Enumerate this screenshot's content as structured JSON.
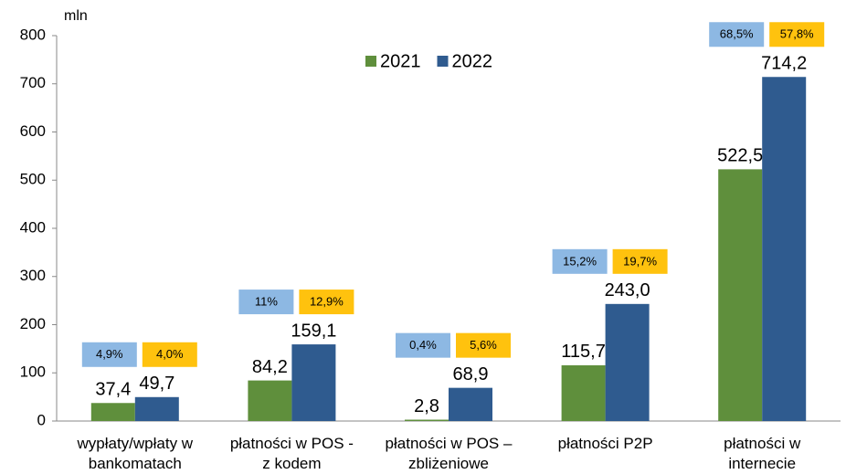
{
  "chart_data": {
    "type": "bar",
    "y_axis_label": "mln",
    "categories": [
      "wypłaty/wpłaty w\nbankomatach",
      "płatności w POS -\nz kodem",
      "płatności  w POS –\nzbliżeniowe",
      "płatności P2P",
      "płatności w\ninternecie"
    ],
    "series": [
      {
        "name": "2021",
        "color": "#5f8f3c",
        "values": [
          37.4,
          84.2,
          2.8,
          115.7,
          522.5
        ],
        "value_labels": [
          "37,4",
          "84,2",
          "2,8",
          "115,7",
          "522,5"
        ]
      },
      {
        "name": "2022",
        "color": "#2f5b8f",
        "values": [
          49.7,
          159.1,
          68.9,
          243.0,
          714.2
        ],
        "value_labels": [
          "49,7",
          "159,1",
          "68,9",
          "243,0",
          "714,2"
        ]
      }
    ],
    "annotations": [
      {
        "blue": "4,9%",
        "yellow": "4,0%"
      },
      {
        "blue": "11%",
        "yellow": "12,9%"
      },
      {
        "blue": "0,4%",
        "yellow": "5,6%"
      },
      {
        "blue": "15,2%",
        "yellow": "19,7%"
      },
      {
        "blue": "68,5%",
        "yellow": "57,8%"
      }
    ],
    "annotation_colors": {
      "blue": "#8db8e3",
      "yellow": "#ffc20e"
    },
    "ylim": [
      0,
      800
    ],
    "yticks": [
      0,
      100,
      200,
      300,
      400,
      500,
      600,
      700,
      800
    ],
    "legend": "top"
  }
}
